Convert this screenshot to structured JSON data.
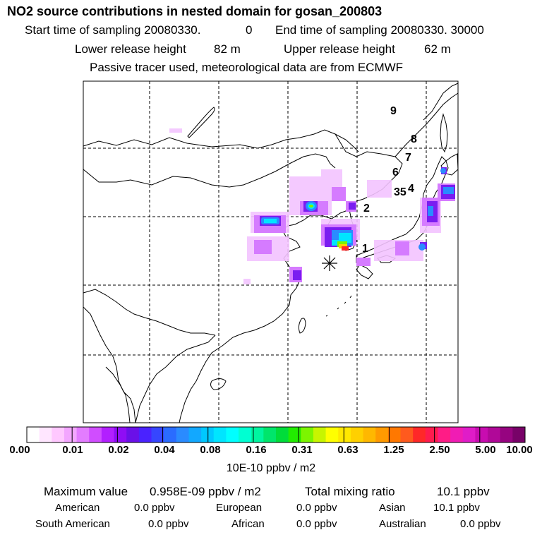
{
  "header": {
    "title": "NO2 source contributions in nested domain for gosan_200803",
    "start_label": "Start time of sampling 20080330.",
    "start_value": "0",
    "end_label": "End time of sampling 20080330. 30000",
    "lower_label": "Lower release height",
    "lower_value": "82 m",
    "upper_label": "Upper release height",
    "upper_value": "62 m",
    "tracer_note": "Passive tracer used, meteorological data are from ECMWF"
  },
  "map": {
    "trajectory_labels": [
      "9",
      "8",
      "7",
      "6",
      "35",
      "4",
      "2",
      "1"
    ],
    "receptor_marker": "asterisk"
  },
  "colorbar": {
    "tick_labels": [
      "0.00",
      "0.01",
      "0.02",
      "0.04",
      "0.08",
      "0.16",
      "0.31",
      "0.63",
      "1.25",
      "2.50",
      "5.00",
      "10.00"
    ],
    "colors": [
      "#ffffff",
      "#ffe6ff",
      "#ffc8ff",
      "#f3a6ff",
      "#e37cff",
      "#d04dff",
      "#b21fff",
      "#8f0df5",
      "#6a10e8",
      "#4a22ff",
      "#3646ff",
      "#2a6cff",
      "#2a8bff",
      "#12a8ff",
      "#00c8ff",
      "#00e5ff",
      "#00ffff",
      "#00ffd2",
      "#00f5a0",
      "#00e56b",
      "#00dc3a",
      "#22ec00",
      "#7cf500",
      "#c8f500",
      "#ffff00",
      "#ffe800",
      "#ffd000",
      "#ffb800",
      "#ff9a00",
      "#ff7800",
      "#ff5a1e",
      "#ff2828",
      "#ff1b4e",
      "#ff1c86",
      "#f01cb4",
      "#e01cc8",
      "#c80cb0",
      "#b00898",
      "#960480",
      "#780268"
    ],
    "units": "10E-10 ppbv / m2"
  },
  "stats": {
    "max_label": "Maximum value",
    "max_value": "0.958E-09 ppbv / m2",
    "total_label": "Total mixing ratio",
    "total_value": "10.1 ppbv",
    "regions": [
      {
        "name": "American",
        "value": "0.0 ppbv"
      },
      {
        "name": "European",
        "value": "0.0 ppbv"
      },
      {
        "name": "Asian",
        "value": "10.1 ppbv"
      },
      {
        "name": "South American",
        "value": "0.0 ppbv"
      },
      {
        "name": "African",
        "value": "0.0 ppbv"
      },
      {
        "name": "Australian",
        "value": "0.0 ppbv"
      }
    ]
  }
}
